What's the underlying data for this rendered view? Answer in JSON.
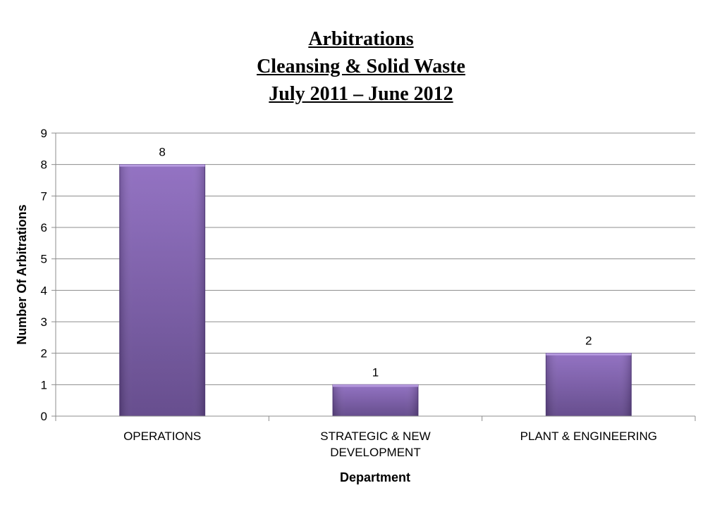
{
  "chart_data": {
    "type": "bar",
    "title": [
      "Arbitrations",
      "Cleansing & Solid Waste",
      "July 2011 – June 2012"
    ],
    "categories": [
      [
        "OPERATIONS"
      ],
      [
        "STRATEGIC & NEW",
        "DEVELOPMENT"
      ],
      [
        "PLANT & ENGINEERING"
      ]
    ],
    "values": [
      8,
      1,
      2
    ],
    "xlabel": "Department",
    "ylabel": "Number Of Arbitrations",
    "ylim": [
      0,
      9
    ],
    "yticks": [
      0,
      1,
      2,
      3,
      4,
      5,
      6,
      7,
      8,
      9
    ],
    "grid": true,
    "data_labels": true,
    "bar_color": "#7a59a8",
    "bar_color_light": "#8e6cc0",
    "bar_color_dark": "#5f4588"
  }
}
